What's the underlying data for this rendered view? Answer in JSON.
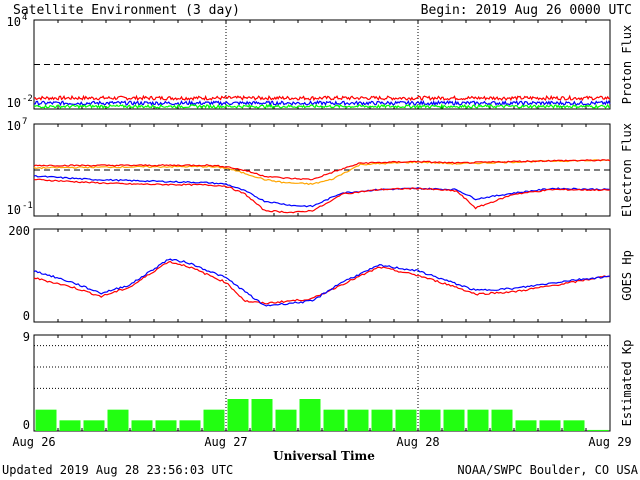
{
  "header": {
    "title": "Satellite Environment (3 day)",
    "begin": "Begin:  2019 Aug 26 0000 UTC"
  },
  "footer": {
    "updated": "Updated 2019 Aug 28 23:56:03 UTC",
    "credit": "NOAA/SWPC Boulder, CO USA",
    "xlabel": "Universal Time"
  },
  "colors": {
    "red": "#ff0000",
    "blue": "#0000ff",
    "green": "#00ff00",
    "orange": "#ffa500",
    "kp_bar": "#22ff11"
  },
  "chart_data": [
    {
      "type": "line",
      "id": "proton",
      "ylabel": "Proton Flux",
      "yscale": "log",
      "ylim": [
        0.01,
        10000
      ],
      "ticks": [
        {
          "label": "10",
          "exp": "4"
        },
        {
          "label": "10",
          "exp": "-2"
        }
      ],
      "threshold": 10,
      "x_days": [
        0,
        3
      ],
      "series": [
        {
          "color": "red",
          "level": 0.055,
          "noise": 0.25
        },
        {
          "color": "blue",
          "level": 0.025,
          "noise": 0.25
        },
        {
          "color": "green",
          "level": 0.015,
          "noise": 0.2
        }
      ]
    },
    {
      "type": "line",
      "id": "electron",
      "ylabel": "Electron Flux",
      "yscale": "log",
      "ylim": [
        0.1,
        10000000
      ],
      "ticks": [
        {
          "label": "10",
          "exp": "7"
        },
        {
          "label": "10",
          "exp": "-1"
        }
      ],
      "threshold": 1000,
      "x_days": [
        0,
        3
      ],
      "series": [
        {
          "color": "blue",
          "x": [
            0,
            0.3,
            0.5,
            0.9,
            1.0,
            1.1,
            1.2,
            1.35,
            1.45,
            1.55,
            1.6,
            1.8,
            2.0,
            2.2,
            2.3,
            2.5,
            2.7,
            3.0
          ],
          "y": [
            300,
            150,
            120,
            80,
            60,
            15,
            2,
            0.8,
            0.7,
            4,
            10,
            20,
            25,
            20,
            3,
            10,
            25,
            20
          ]
        },
        {
          "color": "red",
          "x": [
            0,
            0.3,
            0.5,
            0.9,
            1.0,
            1.1,
            1.2,
            1.35,
            1.45,
            1.55,
            1.6,
            1.8,
            2.0,
            2.2,
            2.3,
            2.5,
            2.7,
            3.0
          ],
          "y": [
            150,
            80,
            60,
            50,
            40,
            8,
            0.3,
            0.2,
            0.3,
            2,
            8,
            20,
            25,
            15,
            0.5,
            8,
            20,
            18
          ]
        },
        {
          "color": "orange",
          "x": [
            0,
            0.4,
            0.9,
            1.0,
            1.1,
            1.2,
            1.3,
            1.45,
            1.55,
            1.7,
            2.0,
            2.2,
            2.5,
            2.7,
            3.0
          ],
          "y": [
            1500,
            1800,
            2000,
            1500,
            500,
            150,
            80,
            60,
            150,
            3000,
            5000,
            3500,
            5000,
            6000,
            7000
          ]
        },
        {
          "color": "red",
          "x": [
            0,
            0.4,
            0.9,
            1.0,
            1.1,
            1.2,
            1.3,
            1.45,
            1.55,
            1.7,
            2.0,
            2.2,
            2.5,
            2.7,
            3.0
          ],
          "y": [
            2500,
            2500,
            2600,
            2000,
            900,
            300,
            200,
            150,
            600,
            4000,
            5500,
            4000,
            5500,
            6500,
            7000
          ]
        }
      ]
    },
    {
      "type": "line",
      "id": "goes",
      "ylabel": "GOES Hp",
      "yscale": "linear",
      "ylim": [
        0,
        200
      ],
      "ticks": [
        {
          "label": "200",
          "value": 200
        },
        {
          "label": "0",
          "value": 0
        }
      ],
      "x_days": [
        0,
        3
      ],
      "series": [
        {
          "color": "red",
          "x": [
            0,
            0.2,
            0.35,
            0.5,
            0.7,
            0.8,
            1.0,
            1.1,
            1.2,
            1.45,
            1.6,
            1.8,
            2.0,
            2.2,
            2.3,
            2.5,
            2.8,
            3.0
          ],
          "y": [
            95,
            75,
            55,
            75,
            130,
            120,
            85,
            45,
            40,
            50,
            80,
            118,
            100,
            75,
            60,
            65,
            85,
            100
          ]
        },
        {
          "color": "blue",
          "x": [
            0,
            0.2,
            0.35,
            0.5,
            0.7,
            0.8,
            1.0,
            1.1,
            1.2,
            1.45,
            1.6,
            1.8,
            2.0,
            2.2,
            2.3,
            2.5,
            2.8,
            3.0
          ],
          "y": [
            110,
            85,
            62,
            80,
            135,
            128,
            95,
            65,
            35,
            45,
            85,
            122,
            110,
            82,
            68,
            72,
            90,
            98
          ]
        }
      ]
    },
    {
      "type": "bar",
      "id": "kp",
      "ylabel": "Estimated Kp",
      "ylim": [
        0,
        9
      ],
      "ticks": [
        {
          "label": "9",
          "value": 9
        },
        {
          "label": "0",
          "value": 0
        }
      ],
      "gridlines": [
        4,
        6,
        8
      ],
      "values": [
        2,
        1,
        1,
        2,
        1,
        1,
        1,
        2,
        3,
        3,
        2,
        3,
        2,
        2,
        2,
        2,
        2,
        2,
        2,
        2,
        1,
        1,
        1,
        0.1
      ],
      "xticks": [
        "Aug 26",
        "Aug 27",
        "Aug 28",
        "Aug 29"
      ]
    }
  ]
}
